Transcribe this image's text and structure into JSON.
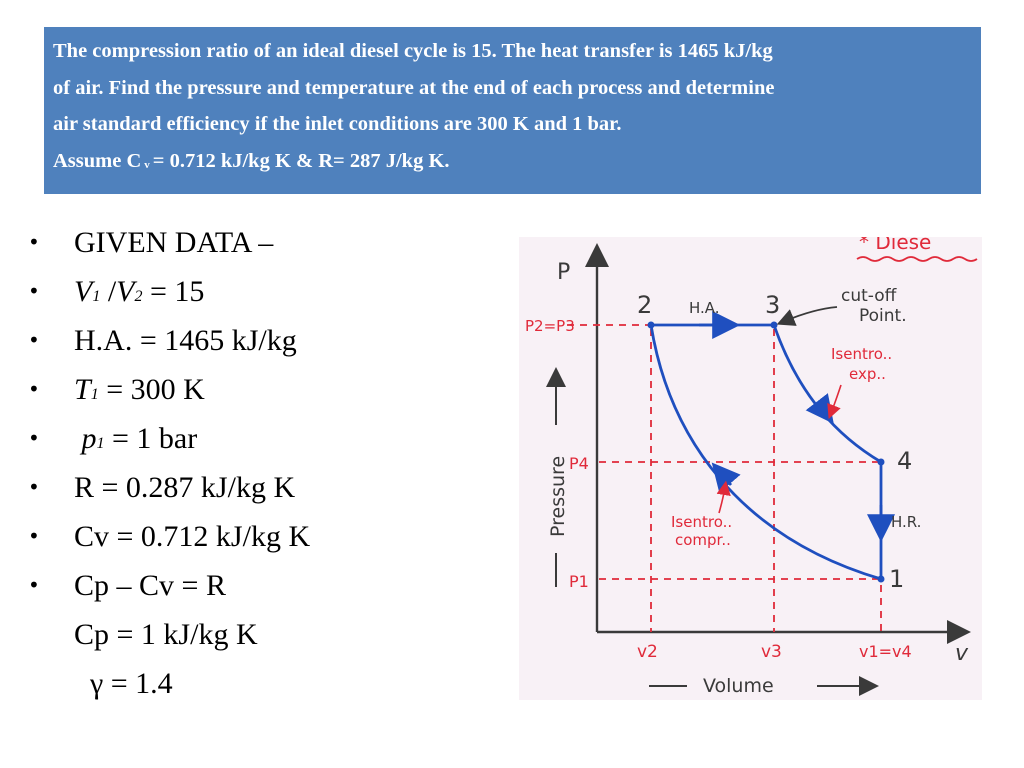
{
  "problem": {
    "line1": "The compression ratio of an ideal diesel cycle is 15. The heat transfer is 1465 kJ/kg",
    "line2": "of air. Find the pressure and temperature at the end of each process and determine",
    "line3": "air standard efficiency if the inlet conditions are 300 K and 1 bar.",
    "line4_a": "Assume C",
    "line4_sub": "v",
    "line4_b": "= 0.712 kJ/kg K & R= 287 J/kg K."
  },
  "given": {
    "heading": "GIVEN DATA –",
    "ratio_v1": "V",
    "ratio_v1_sub": "1",
    "ratio_slash": " /",
    "ratio_v2": "V",
    "ratio_v2_sub": "2",
    "ratio_value": " = 15",
    "ha": "H.A. = 1465 kJ/kg",
    "t1": "T",
    "t1_sub": "1",
    "t1_value": " = 300 K",
    "p1": "p",
    "p1_sub": "1",
    "p1_value": " = 1 bar",
    "r": "R = 0.287 kJ/kg K",
    "cv": "Cv = 0.712 kJ/kg K",
    "cp_cv": "Cp – Cv = R",
    "cp": "Cp = 1 kJ/kg K",
    "gamma": "γ = 1.4"
  },
  "diagram": {
    "title_fragment": "* Diese",
    "y_axis_symbol": "P",
    "x_axis_symbol": "v",
    "y_axis_label": "Pressure",
    "x_axis_label": "Volume",
    "p2p3": "P2=P3",
    "p4": "P4",
    "p1": "P1",
    "v2": "v2",
    "v3": "v3",
    "v1v4": "v1=v4",
    "pt2": "2",
    "pt3": "3",
    "pt4": "4",
    "pt1": "1",
    "ha": "H.A.",
    "hr": "H.R.",
    "cutoff_1": "cut-off",
    "cutoff_2": "Point.",
    "isentro_exp_1": "Isentro..",
    "isentro_exp_2": "exp..",
    "isentro_compr_1": "Isentro..",
    "isentro_compr_2": "compr..",
    "colors": {
      "ink_blue": "#1f4fbf",
      "ink_red": "#e02a3a",
      "ink_black": "#3a3a3a"
    }
  }
}
